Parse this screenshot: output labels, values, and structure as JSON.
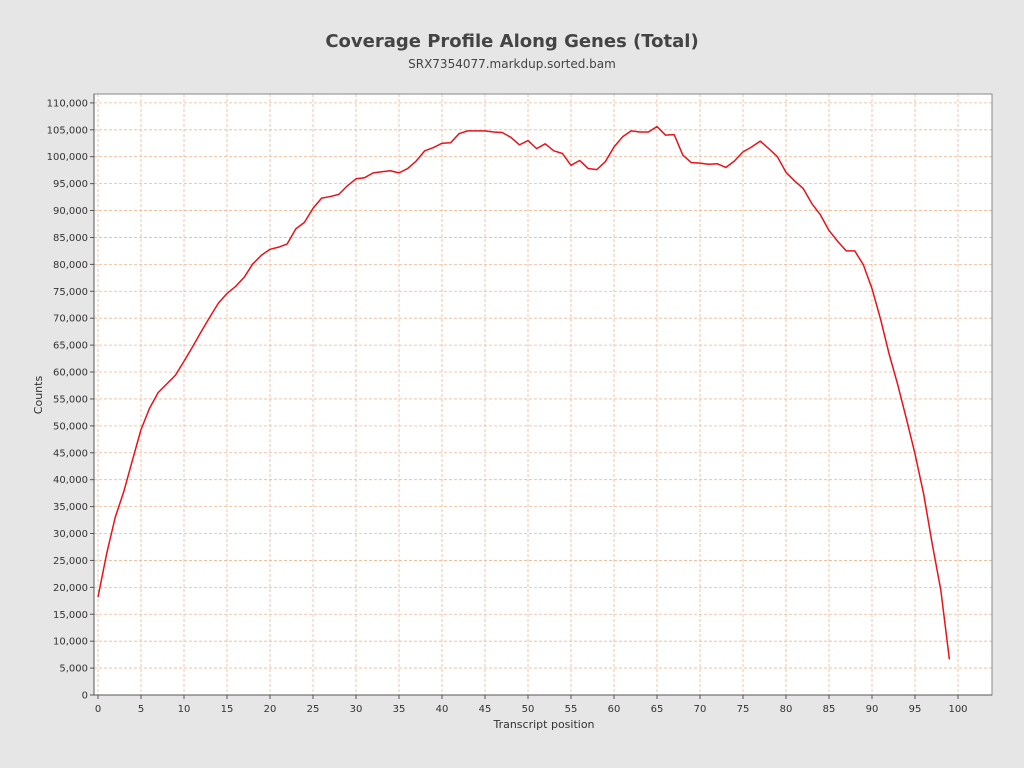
{
  "chart_data": {
    "type": "line",
    "title": "Coverage Profile Along Genes (Total)",
    "subtitle": "SRX7354077.markdup.sorted.bam",
    "xlabel": "Transcript position",
    "ylabel": "Counts",
    "xlim": [
      0,
      104
    ],
    "ylim": [
      0,
      111000
    ],
    "x_ticks": [
      0,
      5,
      10,
      15,
      20,
      25,
      30,
      35,
      40,
      45,
      50,
      55,
      60,
      65,
      70,
      75,
      80,
      85,
      90,
      95,
      100
    ],
    "y_ticks": [
      0,
      5000,
      10000,
      15000,
      20000,
      25000,
      30000,
      35000,
      40000,
      45000,
      50000,
      55000,
      60000,
      65000,
      70000,
      75000,
      80000,
      85000,
      90000,
      95000,
      100000,
      105000,
      110000
    ],
    "y_tick_labels": [
      "0",
      "5,000",
      "10,000",
      "15,000",
      "20,000",
      "25,000",
      "30,000",
      "35,000",
      "40,000",
      "45,000",
      "50,000",
      "55,000",
      "60,000",
      "65,000",
      "70,000",
      "75,000",
      "80,000",
      "85,000",
      "90,000",
      "95,000",
      "100,000",
      "105,000",
      "110,000"
    ],
    "grid": true,
    "colors": {
      "line": "#e8121a",
      "grid": "#f0b894",
      "plot_bg": "#ffffff",
      "page_bg": "#e6e6e6"
    },
    "series": [
      {
        "x": [
          0,
          1,
          2,
          3,
          4,
          5,
          6,
          7,
          8,
          9,
          10,
          11,
          12,
          13,
          14,
          15,
          16,
          17,
          18,
          19,
          20,
          21,
          22,
          23,
          24,
          25,
          26,
          27,
          28,
          29,
          30,
          31,
          32,
          33,
          34,
          35,
          36,
          37,
          38,
          39,
          40,
          41,
          42,
          43,
          44,
          45,
          46,
          47,
          48,
          49,
          50,
          51,
          52,
          53,
          54,
          55,
          56,
          57,
          58,
          59,
          60,
          61,
          62,
          63,
          64,
          65,
          66,
          67,
          68,
          69,
          70,
          71,
          72,
          73,
          74,
          75,
          76,
          77,
          78,
          79,
          80,
          81,
          82,
          83,
          84,
          85,
          86,
          87,
          88,
          89,
          90,
          91,
          92,
          93,
          94,
          95,
          96,
          97,
          98,
          99
        ],
        "values": [
          18200,
          26200,
          33000,
          37800,
          43600,
          49300,
          53300,
          56200,
          57800,
          59400,
          62000,
          64700,
          67500,
          70200,
          72800,
          74600,
          75900,
          77600,
          80100,
          81700,
          82800,
          83200,
          83800,
          86600,
          87800,
          90400,
          92300,
          92600,
          93000,
          94600,
          95900,
          96100,
          97000,
          97200,
          97400,
          97000,
          97800,
          99200,
          101100,
          101700,
          102500,
          102600,
          104300,
          104800,
          104800,
          104800,
          104600,
          104500,
          103600,
          102200,
          103000,
          101500,
          102400,
          101100,
          100600,
          98400,
          99300,
          97800,
          97600,
          99100,
          101800,
          103700,
          104800,
          104600,
          104600,
          105600,
          104000,
          104100,
          100300,
          98900,
          98800,
          98600,
          98700,
          98000,
          99200,
          100900,
          101800,
          102900,
          101500,
          100000,
          97100,
          95500,
          94100,
          91300,
          89200,
          86300,
          84300,
          82500,
          82500,
          79900,
          75500,
          69800,
          63300,
          57600,
          51300,
          44800,
          37400,
          28100,
          19500,
          6600
        ]
      }
    ]
  }
}
